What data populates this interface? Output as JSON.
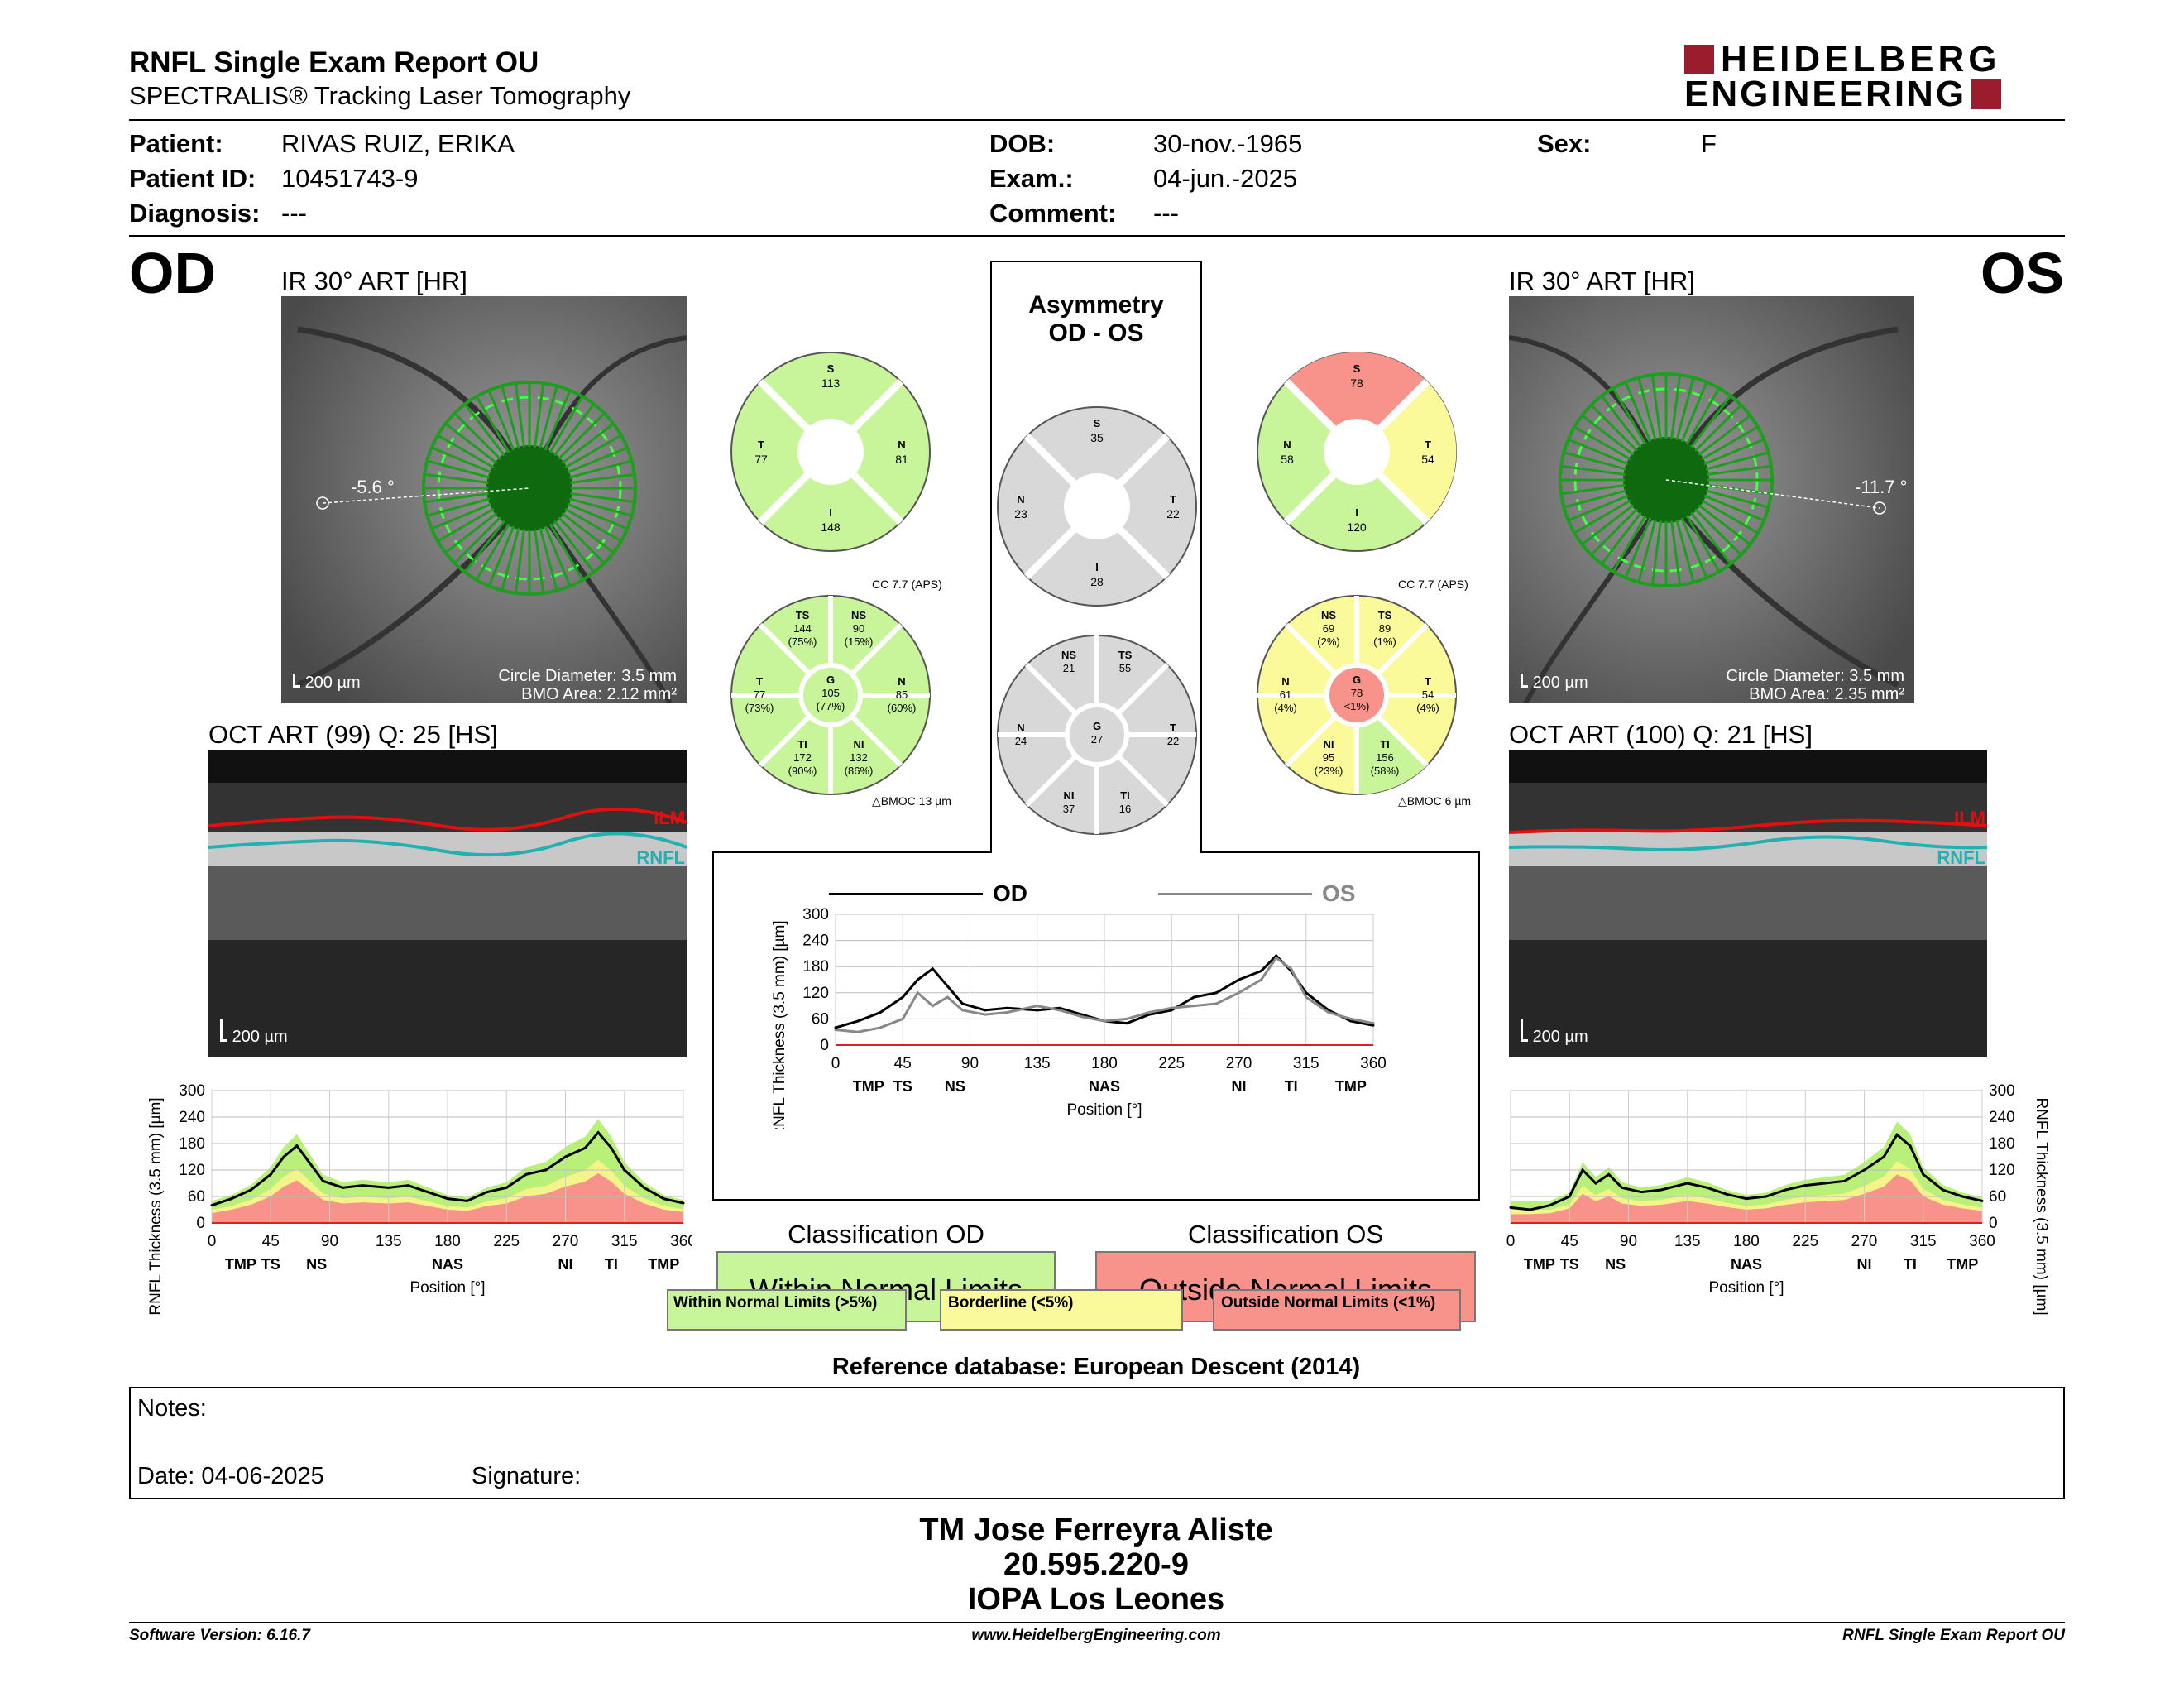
{
  "header": {
    "title": "RNFL Single Exam Report OU",
    "subtitle": "SPECTRALIS® Tracking Laser Tomography",
    "logo_line1": "HEIDELBERG",
    "logo_line2": "ENGINEERING"
  },
  "patient": {
    "patient_label": "Patient:",
    "patient_value": "RIVAS RUIZ, ERIKA",
    "id_label": "Patient ID:",
    "id_value": "10451743-9",
    "diag_label": "Diagnosis:",
    "diag_value": "---",
    "dob_label": "DOB:",
    "dob_value": "30-nov.-1965",
    "exam_label": "Exam.:",
    "exam_value": "04-jun.-2025",
    "comment_label": "Comment:",
    "comment_value": "---",
    "sex_label": "Sex:",
    "sex_value": "F"
  },
  "od": {
    "eye": "OD",
    "ir_title": "IR 30° ART [HR]",
    "angle": "-5.6 °",
    "scale": "200 µm",
    "circle_diam": "Circle Diameter: 3.5 mm",
    "bmo_area": "BMO Area: 2.12 mm²",
    "oct_title": "OCT ART (99) Q: 25 [HS]",
    "oct_scale": "200 µm",
    "ilm": "ILM",
    "rnfl": "RNFL",
    "quad": {
      "S": "113",
      "T": "77",
      "N": "81",
      "I": "148",
      "S_l": "S",
      "T_l": "T",
      "N_l": "N",
      "I_l": "I"
    },
    "cc": "CC 7.7 (APS)",
    "bmoc": "BMOC 13 µm",
    "sect": {
      "TS": {
        "l": "TS",
        "v": "144",
        "p": "(75%)"
      },
      "NS": {
        "l": "NS",
        "v": "90",
        "p": "(15%)"
      },
      "T": {
        "l": "T",
        "v": "77",
        "p": "(73%)"
      },
      "G": {
        "l": "G",
        "v": "105",
        "p": "(77%)"
      },
      "N": {
        "l": "N",
        "v": "85",
        "p": "(60%)"
      },
      "TI": {
        "l": "TI",
        "v": "172",
        "p": "(90%)"
      },
      "NI": {
        "l": "NI",
        "v": "132",
        "p": "(86%)"
      }
    }
  },
  "os": {
    "eye": "OS",
    "ir_title": "IR 30° ART [HR]",
    "angle": "-11.7 °",
    "scale": "200 µm",
    "circle_diam": "Circle Diameter: 3.5 mm",
    "bmo_area": "BMO Area: 2.35 mm²",
    "oct_title": "OCT ART (100) Q: 21 [HS]",
    "oct_scale": "200 µm",
    "ilm": "ILM",
    "rnfl": "RNFL",
    "quad": {
      "S": "78",
      "N": "58",
      "T": "54",
      "I": "120",
      "S_l": "S",
      "T_l": "T",
      "N_l": "N",
      "I_l": "I"
    },
    "cc": "CC 7.7 (APS)",
    "bmoc": "BMOC 6 µm",
    "sect": {
      "NS": {
        "l": "NS",
        "v": "69",
        "p": "(2%)"
      },
      "TS": {
        "l": "TS",
        "v": "89",
        "p": "(1%)"
      },
      "N": {
        "l": "N",
        "v": "61",
        "p": "(4%)"
      },
      "G": {
        "l": "G",
        "v": "78",
        "p": "<1%)"
      },
      "T": {
        "l": "T",
        "v": "54",
        "p": "(4%)"
      },
      "NI": {
        "l": "NI",
        "v": "95",
        "p": "(23%)"
      },
      "TI": {
        "l": "TI",
        "v": "156",
        "p": "(58%)"
      }
    }
  },
  "asym": {
    "title1": "Asymmetry",
    "title2": "OD - OS",
    "quad": {
      "S": "35",
      "N": "23",
      "T": "22",
      "I": "28",
      "S_l": "S",
      "N_l": "N",
      "T_l": "T",
      "I_l": "I"
    },
    "sect": {
      "NS": {
        "l": "NS",
        "v": "21"
      },
      "TS": {
        "l": "TS",
        "v": "55"
      },
      "N": {
        "l": "N",
        "v": "24"
      },
      "G": {
        "l": "G",
        "v": "27"
      },
      "T": {
        "l": "T",
        "v": "22"
      },
      "NI": {
        "l": "NI",
        "v": "37"
      },
      "TI": {
        "l": "TI",
        "v": "16"
      }
    },
    "legend_od": "OD",
    "legend_os": "OS"
  },
  "classification": {
    "od_title": "Classification OD",
    "od_value": "Within Normal Limits",
    "os_title": "Classification OS",
    "os_value": "Outside Normal Limits",
    "legend_wnl": "Within Normal Limits (>5%)",
    "legend_bl": "Borderline (<5%)",
    "legend_onl": "Outside Normal Limits (<1%)",
    "reference": "Reference database: European Descent (2014)"
  },
  "notes": {
    "notes_label": "Notes:",
    "date_label": "Date: 04-06-2025",
    "sig_label": "Signature:"
  },
  "signer": {
    "name": "TM Jose Ferreyra Aliste",
    "id": "20.595.220-9",
    "org": "IOPA Los Leones"
  },
  "footer": {
    "version": "Software Version: 6.16.7",
    "url": "www.HeidelbergEngineering.com",
    "report": "RNFL Single Exam Report OU"
  },
  "colors": {
    "green": "#c8f59a",
    "yellow": "#fafa9a",
    "red": "#f7938a",
    "gray": "#d8d8d8",
    "brand": "#9b1c2c"
  },
  "chart_data": [
    {
      "type": "line",
      "title": "",
      "ylabel": "RNFL Thickness (3.5 mm) [µm]",
      "xlabel": "Position [°]",
      "x_ticks": [
        "0",
        "45",
        "90",
        "135",
        "180",
        "225",
        "270",
        "315",
        "360"
      ],
      "y_ticks": [
        "0",
        "60",
        "120",
        "180",
        "240",
        "300"
      ],
      "sector_labels": [
        "TMP",
        "TS",
        "NS",
        "NAS",
        "NI",
        "TI",
        "TMP"
      ],
      "xlim": [
        0,
        360
      ],
      "ylim": [
        0,
        300
      ],
      "x": [
        0,
        15,
        30,
        45,
        55,
        65,
        75,
        85,
        100,
        115,
        135,
        150,
        165,
        180,
        195,
        210,
        225,
        240,
        255,
        270,
        285,
        295,
        305,
        315,
        330,
        345,
        360
      ],
      "series": [
        {
          "name": "OD",
          "values": [
            40,
            55,
            75,
            110,
            150,
            175,
            135,
            95,
            80,
            85,
            80,
            85,
            70,
            55,
            50,
            70,
            80,
            110,
            120,
            150,
            170,
            205,
            170,
            120,
            80,
            55,
            45
          ]
        }
      ]
    },
    {
      "type": "line",
      "title": "",
      "ylabel": "RNFL Thickness (3.5 mm) [µm]",
      "xlabel": "Position [°]",
      "x_ticks": [
        "0",
        "45",
        "90",
        "135",
        "180",
        "225",
        "270",
        "315",
        "360"
      ],
      "y_ticks": [
        "0",
        "60",
        "120",
        "180",
        "240",
        "300"
      ],
      "sector_labels": [
        "TMP",
        "TS",
        "NS",
        "NAS",
        "NI",
        "TI",
        "TMP"
      ],
      "xlim": [
        0,
        360
      ],
      "ylim": [
        0,
        300
      ],
      "x": [
        0,
        15,
        30,
        45,
        55,
        65,
        75,
        85,
        100,
        115,
        135,
        150,
        165,
        180,
        195,
        210,
        225,
        240,
        255,
        270,
        285,
        295,
        305,
        315,
        330,
        345,
        360
      ],
      "series": [
        {
          "name": "OD",
          "values": [
            40,
            55,
            75,
            110,
            150,
            175,
            135,
            95,
            80,
            85,
            80,
            85,
            70,
            55,
            50,
            70,
            80,
            110,
            120,
            150,
            170,
            205,
            170,
            120,
            80,
            55,
            45
          ]
        },
        {
          "name": "OS",
          "values": [
            35,
            30,
            40,
            60,
            120,
            90,
            110,
            80,
            70,
            75,
            90,
            80,
            65,
            55,
            60,
            75,
            85,
            90,
            95,
            120,
            150,
            200,
            175,
            110,
            75,
            60,
            50
          ]
        }
      ]
    },
    {
      "type": "line",
      "title": "",
      "ylabel": "RNFL Thickness (3.5 mm) [µm]",
      "xlabel": "Position [°]",
      "x_ticks": [
        "0",
        "45",
        "90",
        "135",
        "180",
        "225",
        "270",
        "315",
        "360"
      ],
      "y_ticks": [
        "0",
        "60",
        "120",
        "180",
        "240",
        "300"
      ],
      "sector_labels": [
        "TMP",
        "TS",
        "NS",
        "NAS",
        "NI",
        "TI",
        "TMP"
      ],
      "xlim": [
        0,
        360
      ],
      "ylim": [
        0,
        300
      ],
      "x": [
        0,
        15,
        30,
        45,
        55,
        65,
        75,
        85,
        100,
        115,
        135,
        150,
        165,
        180,
        195,
        210,
        225,
        240,
        255,
        270,
        285,
        295,
        305,
        315,
        330,
        345,
        360
      ],
      "series": [
        {
          "name": "OS",
          "values": [
            35,
            30,
            40,
            60,
            120,
            90,
            110,
            80,
            70,
            75,
            90,
            80,
            65,
            55,
            60,
            75,
            85,
            90,
            95,
            120,
            150,
            200,
            175,
            110,
            75,
            60,
            50
          ]
        }
      ]
    }
  ]
}
